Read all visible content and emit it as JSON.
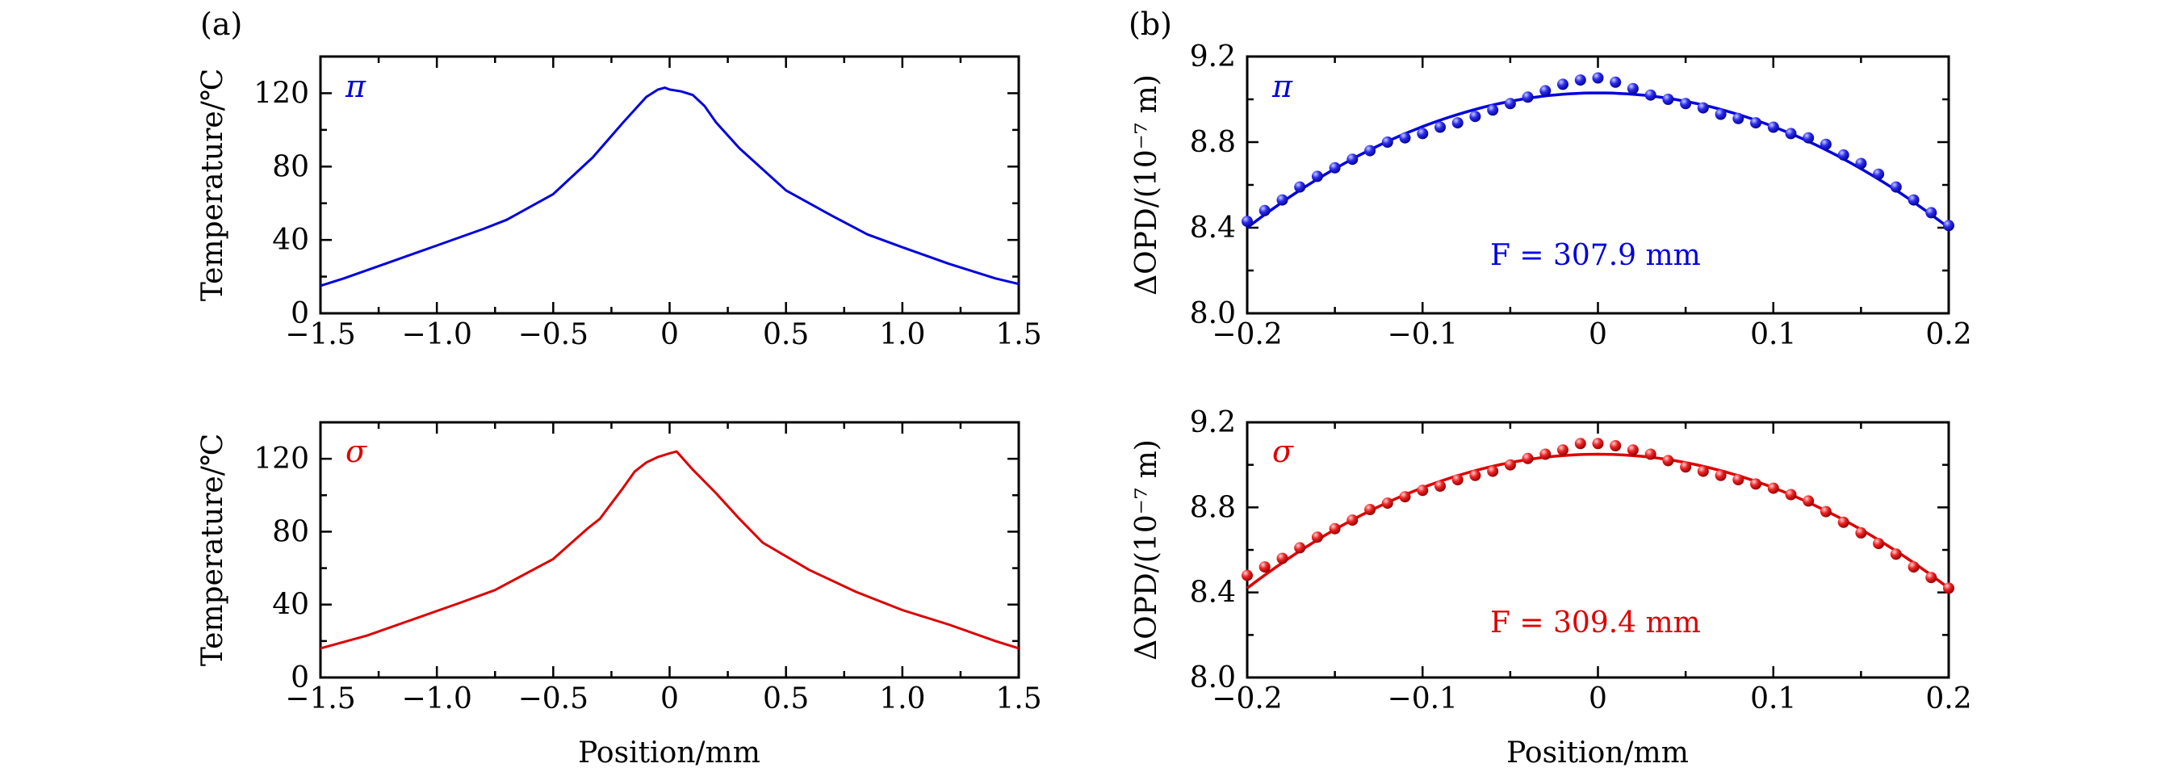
{
  "panel_labels": {
    "a": "(a)",
    "b": "(b)"
  },
  "chart_data": [
    {
      "id": "a-top",
      "type": "line",
      "panel": "(a)",
      "xlabel": "",
      "ylabel": "Temperature/℃",
      "xlim": [
        -1.5,
        1.5
      ],
      "ylim": [
        0,
        140
      ],
      "xticks": [
        -1.5,
        -1.0,
        -0.5,
        0,
        0.5,
        1.0,
        1.5
      ],
      "xtick_labels": [
        "−1.5",
        "−1.0",
        "−0.5",
        "0",
        "0.5",
        "1.0",
        "1.5"
      ],
      "yticks": [
        0,
        40,
        80,
        120
      ],
      "ytick_labels": [
        "0",
        "40",
        "80",
        "120"
      ],
      "label": "π",
      "color": "#0000dd",
      "series": [
        {
          "name": "π",
          "x": [
            -1.5,
            -1.4,
            -1.2,
            -1.0,
            -0.8,
            -0.7,
            -0.5,
            -0.33,
            -0.2,
            -0.1,
            -0.05,
            -0.02,
            0.0,
            0.05,
            0.1,
            0.15,
            0.2,
            0.3,
            0.5,
            0.7,
            0.85,
            1.0,
            1.2,
            1.4,
            1.5
          ],
          "y": [
            15,
            19,
            28,
            37,
            46,
            51,
            65,
            85,
            104,
            118,
            122,
            123,
            122,
            121,
            119,
            113,
            104,
            90,
            67,
            53,
            43,
            36,
            27,
            19,
            16
          ]
        }
      ]
    },
    {
      "id": "a-bottom",
      "type": "line",
      "panel": "",
      "xlabel": "Position/mm",
      "ylabel": "Temperature/℃",
      "xlim": [
        -1.5,
        1.5
      ],
      "ylim": [
        0,
        140
      ],
      "xticks": [
        -1.5,
        -1.0,
        -0.5,
        0,
        0.5,
        1.0,
        1.5
      ],
      "xtick_labels": [
        "−1.5",
        "−1.0",
        "−0.5",
        "0",
        "0.5",
        "1.0",
        "1.5"
      ],
      "yticks": [
        0,
        40,
        80,
        120
      ],
      "ytick_labels": [
        "0",
        "40",
        "80",
        "120"
      ],
      "label": "σ",
      "color": "#dd0000",
      "series": [
        {
          "name": "σ",
          "x": [
            -1.5,
            -1.3,
            -1.1,
            -0.9,
            -0.75,
            -0.5,
            -0.35,
            -0.3,
            -0.2,
            -0.15,
            -0.1,
            -0.05,
            0.0,
            0.03,
            0.1,
            0.2,
            0.3,
            0.4,
            0.6,
            0.8,
            1.0,
            1.2,
            1.4,
            1.5
          ],
          "y": [
            16,
            23,
            32,
            41,
            48,
            65,
            82,
            87,
            104,
            113,
            118,
            121,
            123,
            124,
            114,
            101,
            87,
            74,
            59,
            47,
            37,
            29,
            20,
            16
          ]
        }
      ]
    },
    {
      "id": "b-top",
      "type": "scatter",
      "panel": "(b)",
      "xlabel": "",
      "ylabel": "ΔOPD/(10⁻⁷ m)",
      "xlim": [
        -0.2,
        0.2
      ],
      "ylim": [
        8.0,
        9.2
      ],
      "xticks": [
        -0.2,
        -0.1,
        0,
        0.1,
        0.2
      ],
      "xtick_labels": [
        "−0.2",
        "−0.1",
        "0",
        "0.1",
        "0.2"
      ],
      "yticks": [
        8.0,
        8.4,
        8.8,
        9.2
      ],
      "ytick_labels": [
        "8.0",
        "8.4",
        "8.8",
        "9.2"
      ],
      "label": "π",
      "annotation": "F = 307.9 mm",
      "color": "#0000dd",
      "fit": {
        "type": "parabola",
        "vertex_x": 0,
        "vertex_y": 9.03,
        "y_at_edge": 8.4
      },
      "series": [
        {
          "name": "π measured",
          "x": [
            -0.2,
            -0.19,
            -0.18,
            -0.17,
            -0.16,
            -0.15,
            -0.14,
            -0.13,
            -0.12,
            -0.11,
            -0.1,
            -0.09,
            -0.08,
            -0.07,
            -0.06,
            -0.05,
            -0.04,
            -0.03,
            -0.02,
            -0.01,
            0.0,
            0.01,
            0.02,
            0.03,
            0.04,
            0.05,
            0.06,
            0.07,
            0.08,
            0.09,
            0.1,
            0.11,
            0.12,
            0.13,
            0.14,
            0.15,
            0.16,
            0.17,
            0.18,
            0.19,
            0.2
          ],
          "y": [
            8.43,
            8.48,
            8.53,
            8.59,
            8.64,
            8.68,
            8.72,
            8.76,
            8.8,
            8.82,
            8.84,
            8.87,
            8.89,
            8.92,
            8.95,
            8.98,
            9.01,
            9.04,
            9.07,
            9.09,
            9.1,
            9.08,
            9.05,
            9.02,
            9.0,
            8.98,
            8.96,
            8.93,
            8.91,
            8.89,
            8.87,
            8.84,
            8.82,
            8.79,
            8.74,
            8.7,
            8.65,
            8.59,
            8.53,
            8.47,
            8.41
          ]
        }
      ]
    },
    {
      "id": "b-bottom",
      "type": "scatter",
      "panel": "",
      "xlabel": "Position/mm",
      "ylabel": "ΔOPD/(10⁻⁷ m)",
      "xlim": [
        -0.2,
        0.2
      ],
      "ylim": [
        8.0,
        9.2
      ],
      "xticks": [
        -0.2,
        -0.1,
        0,
        0.1,
        0.2
      ],
      "xtick_labels": [
        "−0.2",
        "−0.1",
        "0",
        "0.1",
        "0.2"
      ],
      "yticks": [
        8.0,
        8.4,
        8.8,
        9.2
      ],
      "ytick_labels": [
        "8.0",
        "8.4",
        "8.8",
        "9.2"
      ],
      "label": "σ",
      "annotation": "F = 309.4 mm",
      "color": "#dd0000",
      "fit": {
        "type": "parabola",
        "vertex_x": 0,
        "vertex_y": 9.05,
        "y_at_edge": 8.42
      },
      "series": [
        {
          "name": "σ measured",
          "x": [
            -0.2,
            -0.19,
            -0.18,
            -0.17,
            -0.16,
            -0.15,
            -0.14,
            -0.13,
            -0.12,
            -0.11,
            -0.1,
            -0.09,
            -0.08,
            -0.07,
            -0.06,
            -0.05,
            -0.04,
            -0.03,
            -0.02,
            -0.01,
            0.0,
            0.01,
            0.02,
            0.03,
            0.04,
            0.05,
            0.06,
            0.07,
            0.08,
            0.09,
            0.1,
            0.11,
            0.12,
            0.13,
            0.14,
            0.15,
            0.16,
            0.17,
            0.18,
            0.19,
            0.2
          ],
          "y": [
            8.48,
            8.52,
            8.56,
            8.61,
            8.66,
            8.7,
            8.74,
            8.79,
            8.82,
            8.85,
            8.88,
            8.9,
            8.93,
            8.95,
            8.97,
            9.0,
            9.03,
            9.05,
            9.07,
            9.1,
            9.1,
            9.09,
            9.07,
            9.05,
            9.02,
            8.99,
            8.97,
            8.95,
            8.93,
            8.91,
            8.89,
            8.86,
            8.83,
            8.78,
            8.73,
            8.68,
            8.63,
            8.58,
            8.52,
            8.47,
            8.42
          ]
        }
      ]
    }
  ]
}
